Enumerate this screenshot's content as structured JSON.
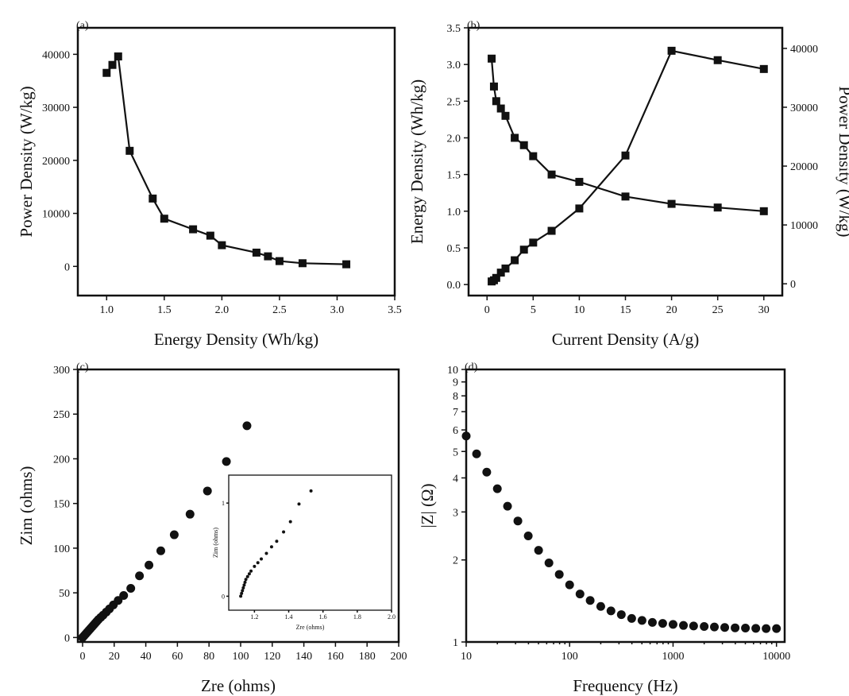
{
  "chart_data": [
    {
      "panel": "a",
      "panel_label": "(a)",
      "type": "line",
      "xlabel": "Energy Density (Wh/kg)",
      "ylabel": "Power Density (W/kg)",
      "xlim": [
        0.75,
        3.5
      ],
      "ylim": [
        -5500,
        45000
      ],
      "xticks": [
        1.0,
        1.5,
        2.0,
        2.5,
        3.0,
        3.5
      ],
      "xtick_labels": [
        "1.0",
        "1.5",
        "2.0",
        "2.5",
        "3.0",
        "3.5"
      ],
      "yticks": [
        0,
        10000,
        20000,
        30000,
        40000
      ],
      "ytick_labels": [
        "0",
        "10000",
        "20000",
        "30000",
        "40000"
      ],
      "marker": "square",
      "series": [
        {
          "x": [
            1.0,
            1.05,
            1.1,
            1.2,
            1.4,
            1.5,
            1.75,
            1.9,
            2.0,
            2.3,
            2.4,
            2.5,
            2.7,
            3.08
          ],
          "y": [
            36500,
            38000,
            39600,
            21800,
            12800,
            9000,
            7000,
            5800,
            4000,
            2600,
            1900,
            1000,
            600,
            400
          ]
        }
      ]
    },
    {
      "panel": "b",
      "panel_label": "(b)",
      "type": "line",
      "xlabel": "Current Density (A/g)",
      "ylabel": "Energy Density (Wh/kg)",
      "y2label": "Power Density (W/kg)",
      "xlim": [
        -2,
        32
      ],
      "ylim": [
        -0.15,
        3.5
      ],
      "y2lim": [
        -2000,
        43500
      ],
      "xticks": [
        0,
        5,
        10,
        15,
        20,
        25,
        30
      ],
      "xtick_labels": [
        "0",
        "5",
        "10",
        "15",
        "20",
        "25",
        "30"
      ],
      "yticks": [
        0.0,
        0.5,
        1.0,
        1.5,
        2.0,
        2.5,
        3.0,
        3.5
      ],
      "ytick_labels": [
        "0.0",
        "0.5",
        "1.0",
        "1.5",
        "2.0",
        "2.5",
        "3.0",
        "3.5"
      ],
      "y2ticks": [
        0,
        10000,
        20000,
        30000,
        40000
      ],
      "y2tick_labels": [
        "0",
        "10000",
        "20000",
        "30000",
        "40000"
      ],
      "marker": "square",
      "series": [
        {
          "axis": "left",
          "x": [
            0.5,
            0.75,
            1,
            1.5,
            2,
            3,
            4,
            5,
            7,
            10,
            15,
            20,
            25,
            30
          ],
          "y": [
            3.08,
            2.7,
            2.5,
            2.4,
            2.3,
            2.0,
            1.9,
            1.75,
            1.5,
            1.4,
            1.2,
            1.1,
            1.05,
            1.0
          ]
        },
        {
          "axis": "right",
          "x": [
            0.5,
            0.75,
            1,
            1.5,
            2,
            3,
            4,
            5,
            7,
            10,
            15,
            20,
            25,
            30
          ],
          "y": [
            400,
            600,
            1000,
            1900,
            2600,
            4000,
            5800,
            7000,
            9000,
            12800,
            21800,
            39600,
            38000,
            36500
          ]
        }
      ]
    },
    {
      "panel": "c",
      "panel_label": "(c)",
      "type": "scatter",
      "xlabel": "Zre (ohms)",
      "ylabel": "Zim (ohms)",
      "xlim": [
        -3,
        200
      ],
      "ylim": [
        -5,
        300
      ],
      "xticks": [
        0,
        20,
        40,
        60,
        80,
        100,
        120,
        140,
        160,
        180,
        200
      ],
      "xtick_labels": [
        "0",
        "20",
        "40",
        "60",
        "80",
        "100",
        "120",
        "140",
        "160",
        "180",
        "200"
      ],
      "yticks": [
        0,
        50,
        100,
        150,
        200,
        250,
        300
      ],
      "ytick_labels": [
        "0",
        "50",
        "100",
        "150",
        "200",
        "250",
        "300"
      ],
      "marker": "circle",
      "series": [
        {
          "x": [
            0,
            1,
            2,
            3,
            4,
            5,
            6,
            7,
            8,
            9,
            10,
            11.5,
            13,
            15,
            17,
            19.5,
            22.5,
            26,
            30.5,
            36,
            42,
            49.5,
            58,
            68,
            79,
            91,
            104
          ],
          "y": [
            0,
            2,
            4,
            6,
            8,
            10,
            12,
            14,
            16,
            18,
            20,
            22.5,
            25,
            28.5,
            32,
            36.5,
            41.5,
            47,
            55,
            69,
            81,
            97,
            115,
            138,
            164,
            197,
            237
          ]
        }
      ],
      "inset": {
        "xlabel": "Zre (ohms)",
        "ylabel": "Zim (ohms)",
        "xlim": [
          1.05,
          2.0
        ],
        "ylim": [
          -0.15,
          1.3
        ],
        "xticks": [
          1.2,
          1.4,
          1.6,
          1.8,
          2.0
        ],
        "xtick_labels": [
          "1.2",
          "1.4",
          "1.6",
          "1.8",
          "2.0"
        ],
        "yticks": [
          0,
          1
        ],
        "ytick_labels": [
          "0",
          "1"
        ],
        "x": [
          1.12,
          1.125,
          1.13,
          1.135,
          1.14,
          1.145,
          1.15,
          1.16,
          1.17,
          1.18,
          1.2,
          1.22,
          1.24,
          1.27,
          1.3,
          1.33,
          1.37,
          1.41,
          1.46,
          1.53
        ],
        "y": [
          0.0,
          0.03,
          0.06,
          0.09,
          0.12,
          0.15,
          0.18,
          0.21,
          0.24,
          0.27,
          0.32,
          0.36,
          0.4,
          0.46,
          0.53,
          0.59,
          0.69,
          0.8,
          0.99,
          1.13
        ]
      }
    },
    {
      "panel": "d",
      "panel_label": "(d)",
      "type": "scatter",
      "xlabel": "Frequency (Hz)",
      "ylabel": "|Z| (Ω)",
      "xscale": "log",
      "yscale": "log",
      "xlim": [
        10,
        12000
      ],
      "ylim": [
        1,
        10
      ],
      "xticks": [
        10,
        100,
        1000,
        10000
      ],
      "xtick_labels": [
        "10",
        "100",
        "1000",
        "10000"
      ],
      "yticks": [
        1,
        2,
        3,
        4,
        5,
        6,
        7,
        8,
        9,
        10
      ],
      "ytick_labels": [
        "1",
        "2",
        "3",
        "4",
        "5",
        "6",
        "7",
        "8",
        "9",
        "10"
      ],
      "marker": "circle",
      "series": [
        {
          "x": [
            10,
            12.6,
            15.8,
            20,
            25.1,
            31.6,
            39.8,
            50.1,
            63.1,
            79.4,
            100,
            126,
            158,
            200,
            251,
            316,
            398,
            501,
            631,
            794,
            1000,
            1260,
            1580,
            2000,
            2510,
            3160,
            3980,
            5010,
            6310,
            7940,
            10000
          ],
          "y": [
            5.7,
            4.9,
            4.2,
            3.65,
            3.15,
            2.78,
            2.45,
            2.17,
            1.95,
            1.77,
            1.62,
            1.5,
            1.42,
            1.35,
            1.3,
            1.26,
            1.22,
            1.2,
            1.18,
            1.17,
            1.16,
            1.15,
            1.145,
            1.14,
            1.135,
            1.13,
            1.127,
            1.125,
            1.122,
            1.12,
            1.12
          ]
        }
      ]
    }
  ]
}
